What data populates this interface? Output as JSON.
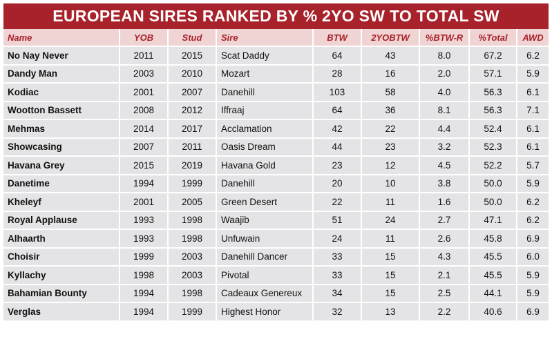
{
  "title": "EUROPEAN SIRES RANKED BY % 2YO SW TO TOTAL SW",
  "columns": [
    "Name",
    "YOB",
    "Stud",
    "Sire",
    "BTW",
    "2YOBTW",
    "%BTW-R",
    "%Total",
    "AWD"
  ],
  "rows": [
    [
      "No Nay Never",
      "2011",
      "2015",
      "Scat Daddy",
      "64",
      "43",
      "8.0",
      "67.2",
      "6.2"
    ],
    [
      "Dandy Man",
      "2003",
      "2010",
      "Mozart",
      "28",
      "16",
      "2.0",
      "57.1",
      "5.9"
    ],
    [
      "Kodiac",
      "2001",
      "2007",
      "Danehill",
      "103",
      "58",
      "4.0",
      "56.3",
      "6.1"
    ],
    [
      "Wootton Bassett",
      "2008",
      "2012",
      "Iffraaj",
      "64",
      "36",
      "8.1",
      "56.3",
      "7.1"
    ],
    [
      "Mehmas",
      "2014",
      "2017",
      "Acclamation",
      "42",
      "22",
      "4.4",
      "52.4",
      "6.1"
    ],
    [
      "Showcasing",
      "2007",
      "2011",
      "Oasis Dream",
      "44",
      "23",
      "3.2",
      "52.3",
      "6.1"
    ],
    [
      "Havana Grey",
      "2015",
      "2019",
      "Havana Gold",
      "23",
      "12",
      "4.5",
      "52.2",
      "5.7"
    ],
    [
      "Danetime",
      "1994",
      "1999",
      "Danehill",
      "20",
      "10",
      "3.8",
      "50.0",
      "5.9"
    ],
    [
      "Kheleyf",
      "2001",
      "2005",
      "Green Desert",
      "22",
      "11",
      "1.6",
      "50.0",
      "6.2"
    ],
    [
      "Royal Applause",
      "1993",
      "1998",
      "Waajib",
      "51",
      "24",
      "2.7",
      "47.1",
      "6.2"
    ],
    [
      "Alhaarth",
      "1993",
      "1998",
      "Unfuwain",
      "24",
      "11",
      "2.6",
      "45.8",
      "6.9"
    ],
    [
      "Choisir",
      "1999",
      "2003",
      "Danehill Dancer",
      "33",
      "15",
      "4.3",
      "45.5",
      "6.0"
    ],
    [
      "Kyllachy",
      "1998",
      "2003",
      "Pivotal",
      "33",
      "15",
      "2.1",
      "45.5",
      "5.9"
    ],
    [
      "Bahamian Bounty",
      "1994",
      "1998",
      "Cadeaux Genereux",
      "34",
      "15",
      "2.5",
      "44.1",
      "5.9"
    ],
    [
      "Verglas",
      "1994",
      "1999",
      "Highest Honor",
      "32",
      "13",
      "2.2",
      "40.6",
      "6.9"
    ]
  ]
}
